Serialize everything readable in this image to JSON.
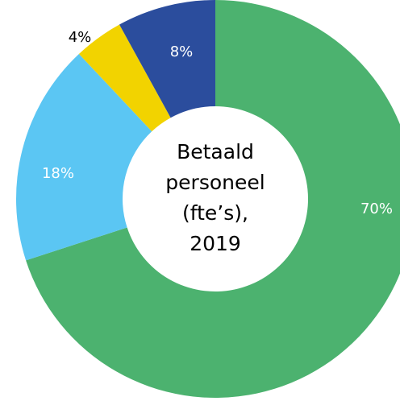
{
  "chart_data": {
    "type": "donut",
    "title": [
      "Betaald",
      "personeel",
      "(fte’s),",
      "2019"
    ],
    "categories": [
      null,
      null,
      null,
      null
    ],
    "values": [
      70,
      18,
      4,
      8
    ],
    "value_labels": [
      "70%",
      "18%",
      "4%",
      "8%"
    ],
    "colors": [
      "#4cb26f",
      "#5bc6f3",
      "#f2d300",
      "#2b4d9d"
    ],
    "label_colors": [
      "#ffffff",
      "#ffffff",
      "#000000",
      "#ffffff"
    ]
  }
}
